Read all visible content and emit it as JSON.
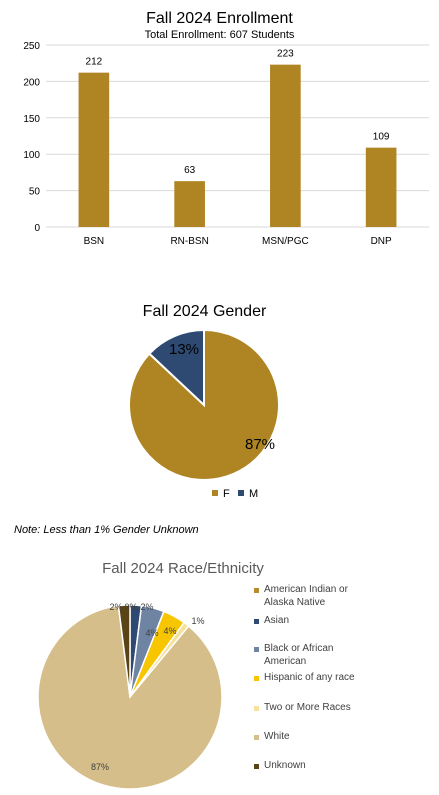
{
  "chart_data": [
    {
      "type": "bar",
      "title": "Fall 2024 Enrollment",
      "subtitle": "Total Enrollment: 607 Students",
      "categories": [
        "BSN",
        "RN-BSN",
        "MSN/PGC",
        "DNP"
      ],
      "values": [
        212,
        63,
        223,
        109
      ],
      "value_labels": [
        "212",
        "63",
        "223",
        "109"
      ],
      "ylim": [
        0,
        250
      ],
      "yticks": [
        0,
        50,
        100,
        150,
        200,
        250
      ],
      "ytick_labels": [
        "0",
        "50",
        "100",
        "150",
        "200",
        "250"
      ],
      "grid": true,
      "color": "#AF8523"
    },
    {
      "type": "pie",
      "title": "Fall 2024 Gender",
      "categories": [
        "F",
        "M"
      ],
      "values": [
        87,
        13
      ],
      "value_labels": [
        "87%",
        "13%"
      ],
      "colors": [
        "#AF8523",
        "#2F4A72"
      ],
      "legend": "bottom"
    },
    {
      "type": "pie",
      "title": "Fall 2024 Race/Ethnicity",
      "categories": [
        "American Indian or Alaska Native",
        "Asian",
        "Black or African American",
        "Hispanic of any race",
        "Two or More Races",
        "White",
        "Unknown"
      ],
      "values": [
        0,
        2,
        4,
        4,
        1,
        87,
        2
      ],
      "value_labels": [
        "0%",
        "2%",
        "4%",
        "4%",
        "1%",
        "87%",
        "2%"
      ],
      "colors": [
        "#B88A2E",
        "#2F4A72",
        "#6F84A3",
        "#F7C600",
        "#F6E09A",
        "#D5BE8A",
        "#5A4416"
      ],
      "legend": "right"
    }
  ],
  "note": "Note: Less than 1% Gender Unknown"
}
